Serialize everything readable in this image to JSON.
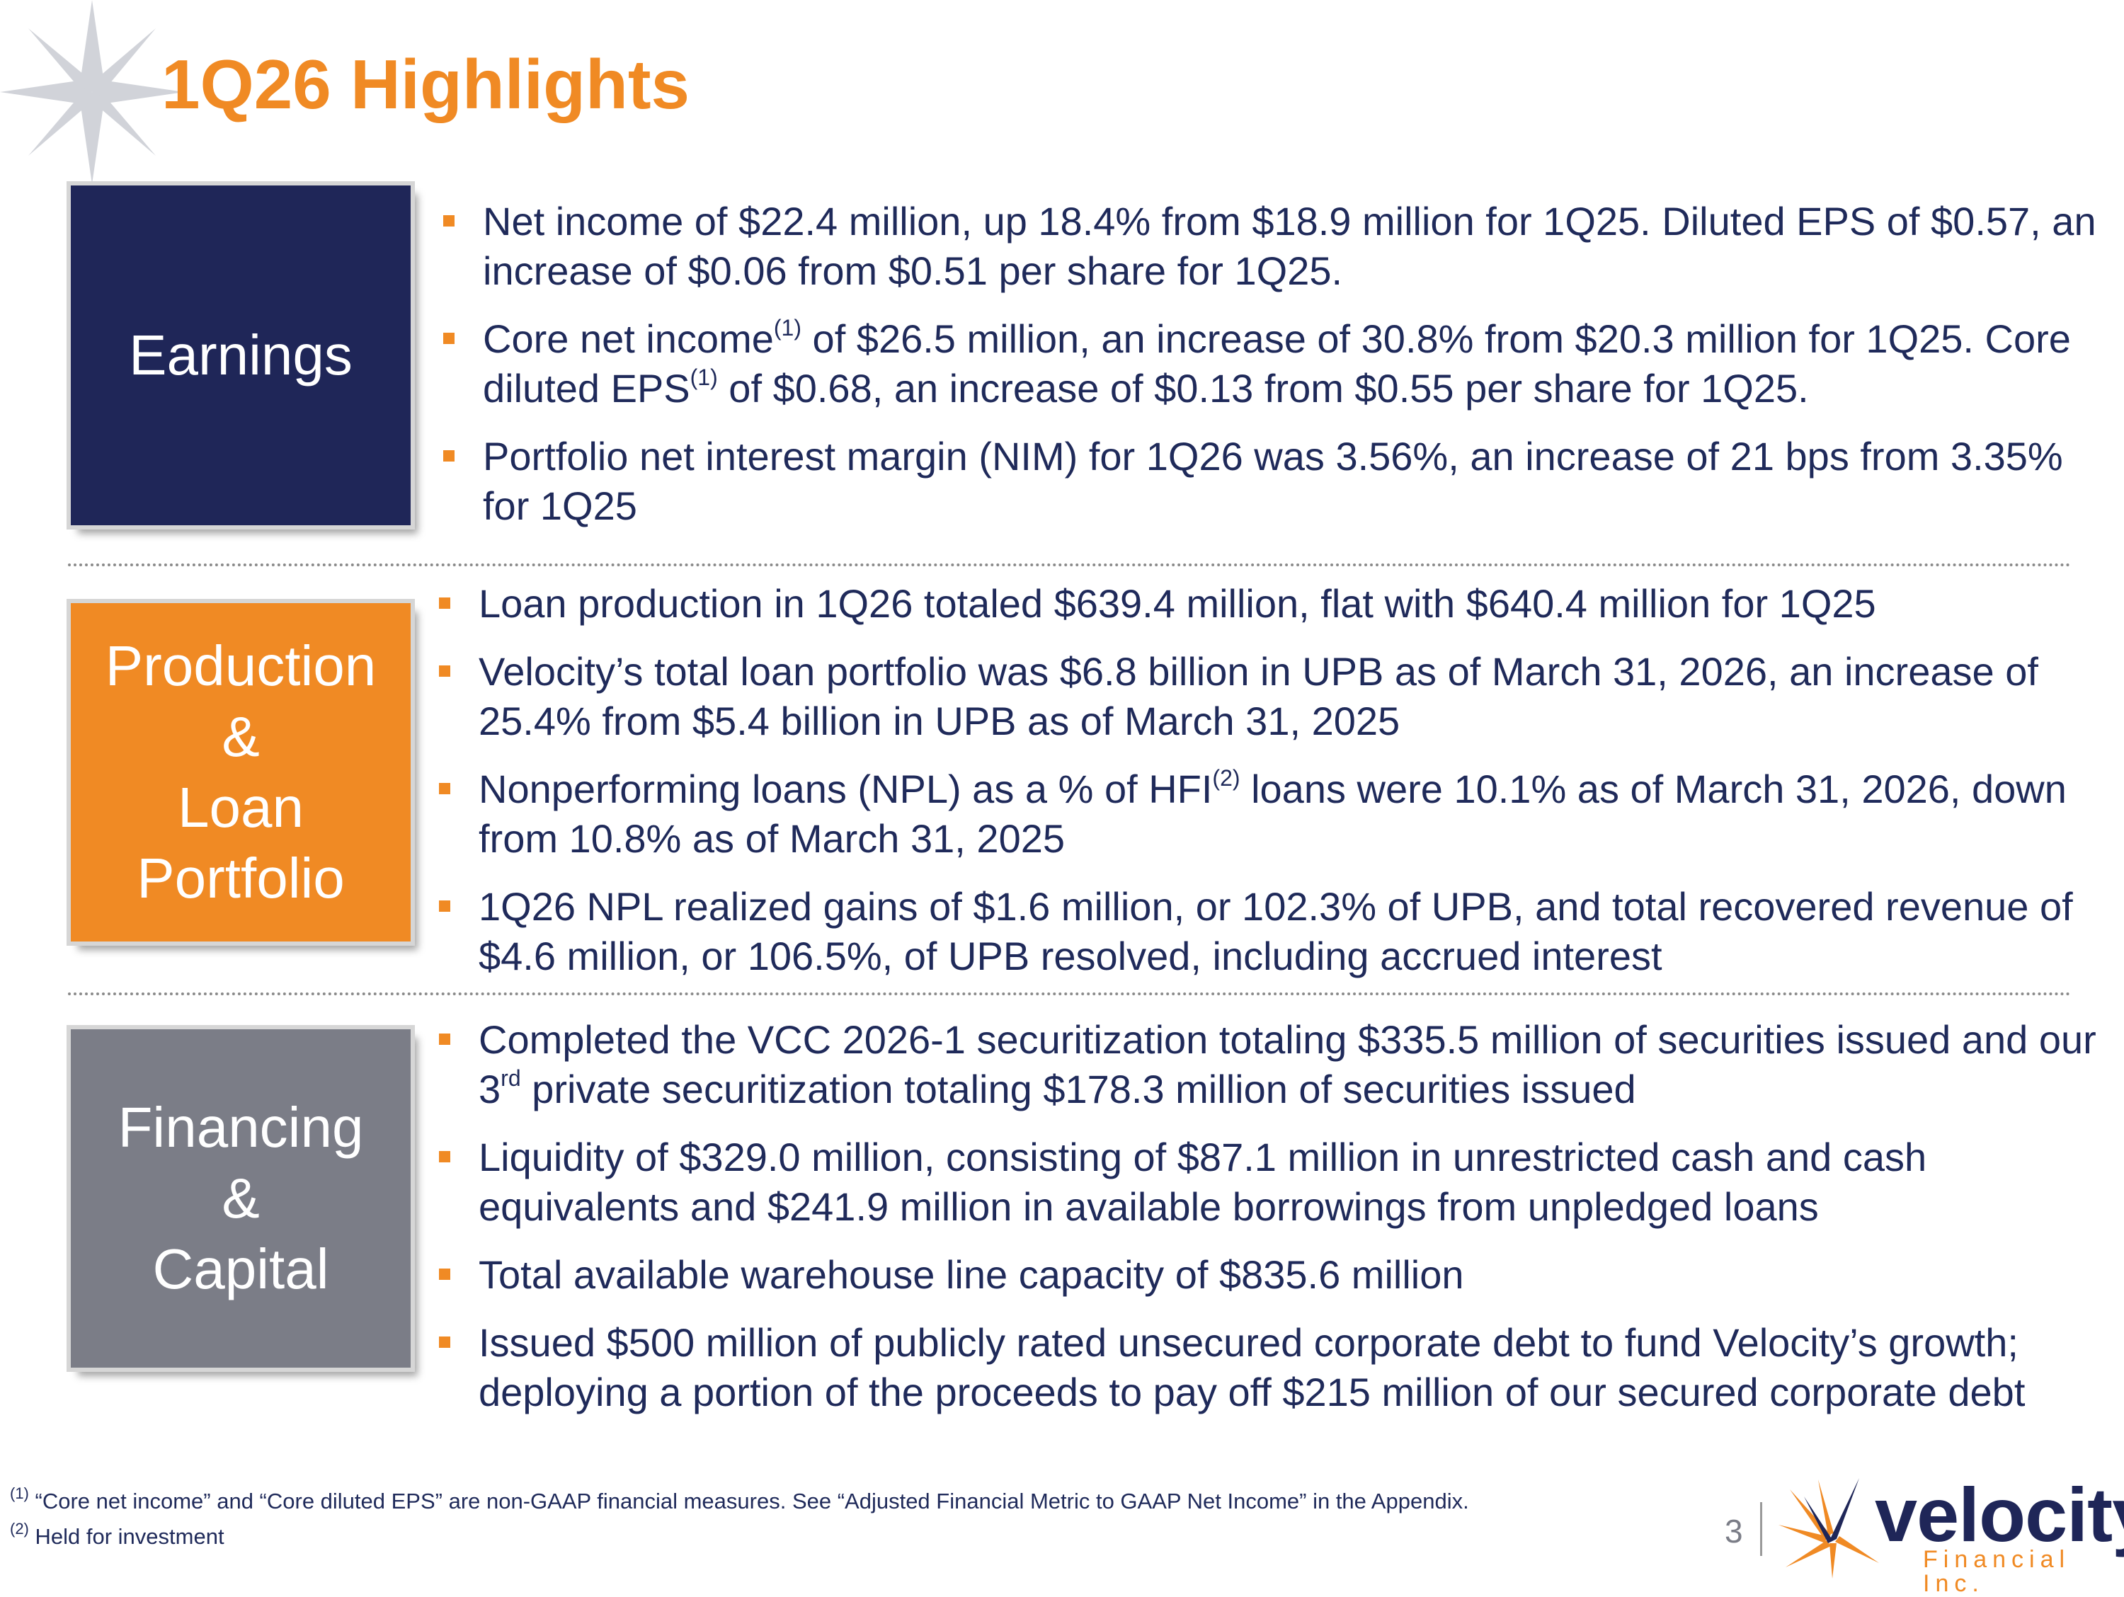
{
  "colors": {
    "brand_orange": "#f08a24",
    "brand_navy": "#1f2658",
    "box_gray": "#7b7d87",
    "text": "#1f2a5a"
  },
  "icons": [
    "compass-star-decoration",
    "velocity-star-logo"
  ],
  "title": "1Q26 Highlights",
  "sections": [
    {
      "label": "Earnings",
      "bullets": [
        {
          "parts": [
            "Net income of $22.4 million, up 18.4% from $18.9 million for 1Q25. Diluted EPS of $0.57, an increase of $0.06 from $0.51 per share for 1Q25."
          ]
        },
        {
          "parts": [
            "Core net income",
            "(1)",
            " of $26.5 million, an increase of 30.8% from $20.3 million for 1Q25. Core diluted EPS",
            "(1)",
            " of $0.68, an increase of $0.13 from $0.55 per share for 1Q25."
          ]
        },
        {
          "parts": [
            "Portfolio net interest margin (NIM) for 1Q26 was 3.56%, an increase of 21 bps from 3.35% for 1Q25"
          ]
        }
      ]
    },
    {
      "label": "Production\n&\nLoan\nPortfolio",
      "bullets": [
        {
          "parts": [
            "Loan production in 1Q26 totaled $639.4 million, flat with $640.4 million for 1Q25"
          ]
        },
        {
          "parts": [
            "Velocity’s total loan portfolio was $6.8 billion in UPB as of March 31, 2026, an increase of 25.4% from $5.4 billion in UPB as of March 31, 2025"
          ]
        },
        {
          "parts": [
            "Nonperforming loans (NPL) as a % of HFI",
            "(2)",
            " loans were 10.1% as of March 31, 2026, down from 10.8% as of March 31, 2025"
          ]
        },
        {
          "parts": [
            "1Q26 NPL realized gains of $1.6 million, or 102.3% of UPB, and total recovered revenue of $4.6 million, or 106.5%, of UPB resolved, including accrued interest"
          ]
        }
      ]
    },
    {
      "label": "Financing\n&\nCapital",
      "bullets": [
        {
          "parts": [
            "Completed the VCC 2026-1 securitization totaling $335.5 million of securities issued and our 3",
            "rd",
            " private securitization totaling $178.3 million of securities issued"
          ]
        },
        {
          "parts": [
            "Liquidity of $329.0 million, consisting of $87.1 million in unrestricted cash and cash equivalents and $241.9 million in available borrowings from unpledged loans"
          ]
        },
        {
          "parts": [
            "Total available warehouse line capacity of $835.6 million"
          ]
        },
        {
          "parts": [
            "Issued $500 million of publicly rated unsecured corporate debt to fund Velocity’s growth; deploying a portion of the proceeds to pay off $215 million of our secured corporate debt"
          ]
        }
      ]
    }
  ],
  "footnotes": [
    {
      "mark": "(1)",
      "text": " “Core net income” and “Core diluted EPS” are non-GAAP financial measures. See “Adjusted Financial Metric to GAAP Net Income” in the Appendix."
    },
    {
      "mark": "(2)",
      "text": " Held for investment"
    }
  ],
  "page_number": "3",
  "logo": {
    "word": "velocity",
    "sub": "Financial Inc."
  }
}
